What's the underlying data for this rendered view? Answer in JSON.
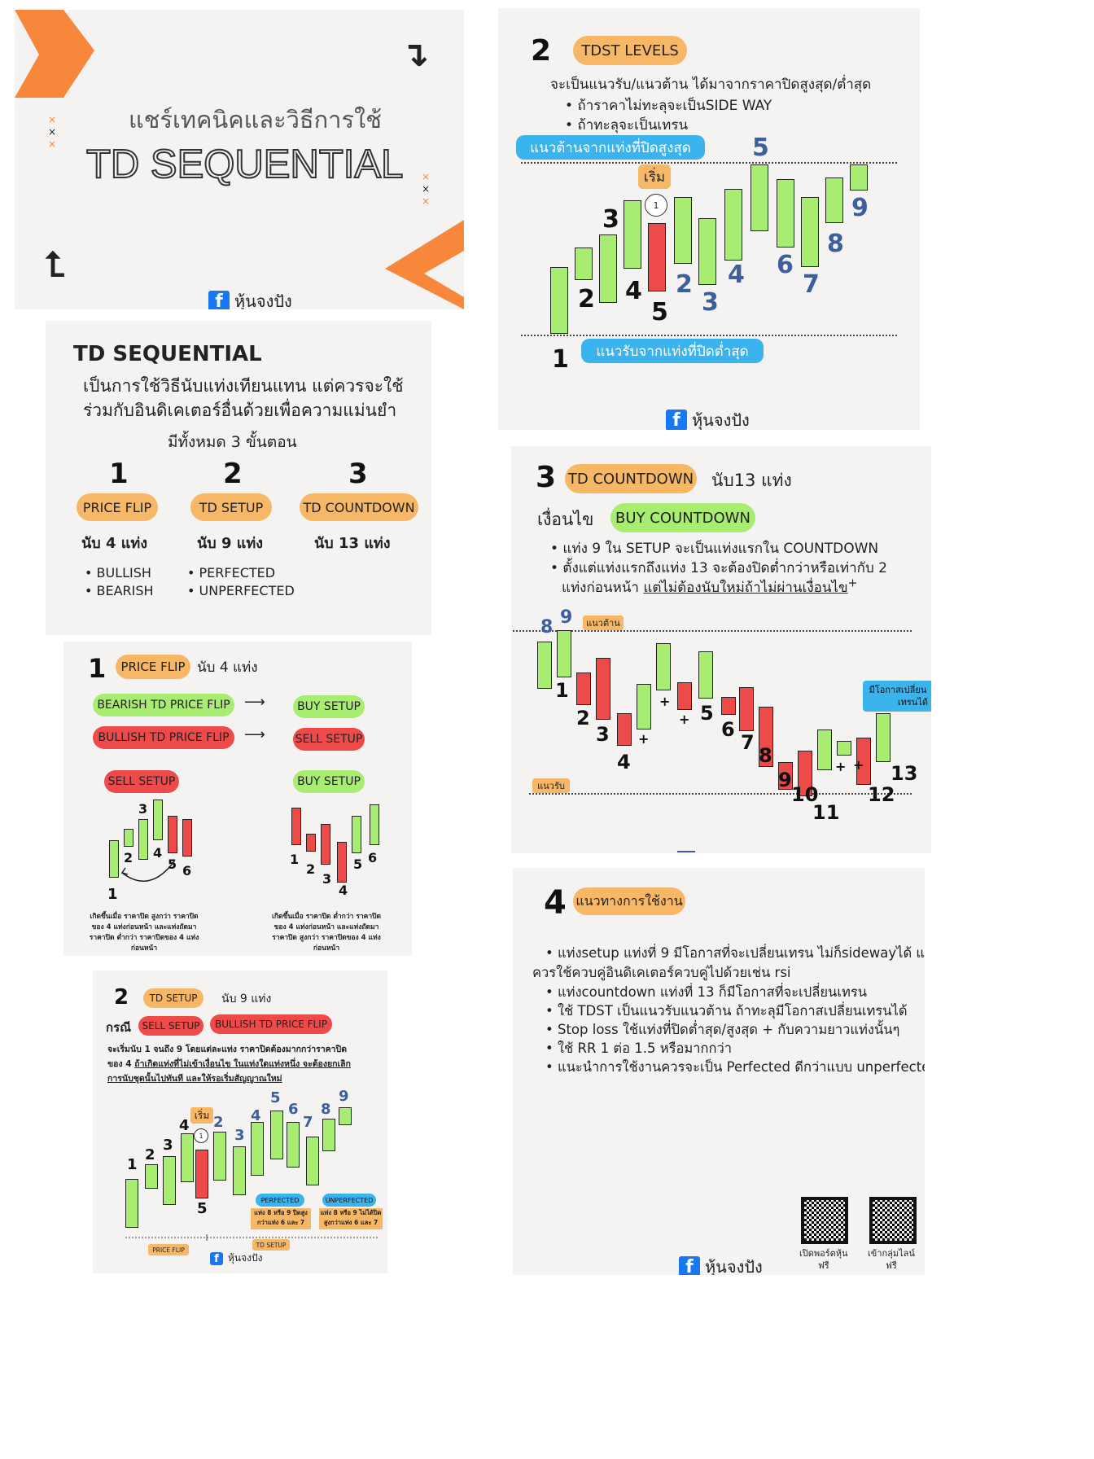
{
  "page": {
    "brand": "หุ้นจงปัง"
  },
  "cover": {
    "subtitle": "แชร์เทคนิคและวิธีการใช้",
    "title": "TD SEQUENTIAL"
  },
  "levels": {
    "num": "2",
    "pill": "TDST LEVELS",
    "desc": "จะเป็นแนวรับ/แนวต้าน ได้มาจากราคาปิดสูงสุด/ต่ำสุด",
    "bullets": [
      "• ถ้าราคาไม่ทะลุจะเป็นSIDE WAY",
      "• ถ้าทะลุจะเป็นเทรน"
    ],
    "resist_label": "แนวต้านจากแท่งที่ปิดสูงสุด",
    "support_label": "แนวรับจากแท่งที่ปิดต่ำสุด",
    "start": "เริ่ม",
    "circle": "1",
    "black_nums": [
      "1",
      "2",
      "3",
      "4",
      "5"
    ],
    "blue_nums": [
      "2",
      "3",
      "4",
      "5",
      "6",
      "7",
      "8",
      "9"
    ]
  },
  "overview": {
    "title": "TD SEQUENTIAL",
    "desc1": "เป็นการใช้วิธีนับแท่งเทียนแทน แต่ควรจะใช้",
    "desc2": "ร่วมกับอินดิเคเตอร์อื่นด้วยเพื่อความแม่นยำ",
    "steps_text": "มีทั้งหมด 3 ขั้นตอน",
    "steps": [
      {
        "num": "1",
        "label": "PRICE FLIP",
        "count": "นับ 4 แท่ง",
        "items": [
          "• BULLISH",
          "• BEARISH"
        ]
      },
      {
        "num": "2",
        "label": "TD SETUP",
        "count": "นับ 9 แท่ง",
        "items": [
          "• PERFECTED",
          "• UNPERFECTED"
        ]
      },
      {
        "num": "3",
        "label": "TD COUNTDOWN",
        "count": "นับ 13 แท่ง",
        "items": []
      }
    ]
  },
  "countdown": {
    "num": "3",
    "pill": "TD COUNTDOWN",
    "count": "นับ13 แท่ง",
    "cond_label": "เงื่อนไข",
    "cond_pill": "BUY COUNTDOWN",
    "b1": "• แท่ง 9  ใน SETUP จะเป็นแท่งแรกใน COUNTDOWN",
    "b2": "• ตั้งแต่แท่งแรกถึงแท่ง 13 จะต้องปิดต่ำกว่าหรือเท่ากับ 2",
    "b3a": "แท่งก่อนหน้า ",
    "b3b": "แต่ไม่ต้องนับใหม่ถ้าไม่ผ่านเงื่อนไข",
    "resist": "แนวต้าน",
    "support": "แนวรับ",
    "chance1": "มีโอกาสเปลี่ยน",
    "chance2": "เทรนได้",
    "blue_nums": [
      "8",
      "9"
    ],
    "nums": [
      "1",
      "2",
      "3",
      "4",
      "5",
      "6",
      "7",
      "8",
      "9",
      "10",
      "11",
      "12",
      "13"
    ],
    "plus": "+"
  },
  "flip": {
    "num": "1",
    "pill": "PRICE FLIP",
    "count": "นับ 4 แท่ง",
    "bear": "BEARISH TD PRICE FLIP",
    "buy": "BUY SETUP",
    "bull": "BULLISH TD PRICE FLIP",
    "sell": "SELL SETUP",
    "sell2": "SELL SETUP",
    "buy2": "BUY SETUP",
    "nums": [
      "1",
      "2",
      "3",
      "4",
      "5",
      "6"
    ],
    "note_left": [
      "เกิดขึ้นเมื่อ ราคาปิด สูงกว่า ราคาปิด",
      "ของ 4 แท่งก่อนหน้า และแท่งถัดมา",
      "ราคาปิด ต่ำกว่า ราคาปิดของ 4 แท่ง",
      "ก่อนหน้า"
    ],
    "note_right": [
      "เกิดขึ้นเมื่อ ราคาปิด ต่ำกว่า ราคาปิด",
      "ของ 4 แท่งก่อนหน้า และแท่งถัดมา",
      "ราคาปิด สูงกว่า ราคาปิดของ 4 แท่ง",
      "ก่อนหน้า"
    ]
  },
  "setup": {
    "num": "2",
    "pill": "TD SETUP",
    "count": "นับ 9 แท่ง",
    "case": "กรณี",
    "sell": "SELL SETUP",
    "bull": "BULLISH TD PRICE FLIP",
    "d1": "จะเริ่มนับ 1 จนถึง 9 โดยแต่ละแท่ง ราคาปิดต้องมากกว่าราคาปิด",
    "d2a": "ของ 4 ",
    "d2b": "ถ้าเกิดแท่งที่ไม่เข้าเงื่อนไข ในแท่งใดแท่งหนึ่ง จะต้องยกเลิก",
    "d3": "การนับชุดนั้นไปทันที และให้รอเริ่มสัญญาณใหม่",
    "start": "เริ่ม",
    "circle": "1",
    "perfected": "PERFECTED",
    "perf_note1": "แท่ง 8 หรือ 9 ปิดสูง",
    "perf_note2": "กว่าแท่ง 6 และ 7",
    "unperfected": "UNPERFECTED",
    "unperf_note1": "แท่ง 8 หรือ 9 ไม่ได้ปิด",
    "unperf_note2": "สูงกว่าแท่ง 6 และ 7",
    "price_flip": "PRICE FLIP",
    "td_setup": "TD SETUP",
    "black_nums": [
      "1",
      "2",
      "3",
      "4",
      "5"
    ],
    "blue_nums": [
      "2",
      "3",
      "4",
      "5",
      "6",
      "7",
      "8",
      "9"
    ]
  },
  "usage": {
    "num": "4",
    "pill": "แนวทางการใช้งาน",
    "l1": "• แท่งsetup แท่งที่ 9 มีโอกาสที่จะเปลี่ยนเทรน ไม่ก็sidewayได้ แต่",
    "l2": "ควรใช้ควบคู่อินดิเคเตอร์ควบคู่ไปด้วยเช่น rsi",
    "l3": "• แท่งcountdown แท่งที่ 13 ก็มีโอกาสที่จะเปลี่ยนเทรน",
    "l4": "• ใช้ TDST เป็นแนวรับแนวต้าน ถ้าทะลุมีโอกาสเปลี่ยนเทรนได้",
    "l5": "• Stop loss ใช้แท่งที่ปิดต่ำสุด/สูงสุด + กับความยาวแท่งนั้นๆ",
    "l6": "• ใช้ RR 1 ต่อ 1.5 หรือมากกว่า",
    "l7": "• แนะนำการใช้งานควรจะเป็น Perfected ดีกว่าแบบ unperfected",
    "qr1a": "เปิดพอร์ตหุ้น",
    "qr1b": "ฟรี",
    "qr2a": "เข้ากลุ่มไลน์",
    "qr2b": "ฟรี"
  },
  "colors": {
    "orange": "#f6b867",
    "green": "#a9ec72",
    "red": "#ef4a4a",
    "blue": "#3bb3ec",
    "accent_orange": "#f7873a",
    "num_blue": "#3e5f9e"
  }
}
